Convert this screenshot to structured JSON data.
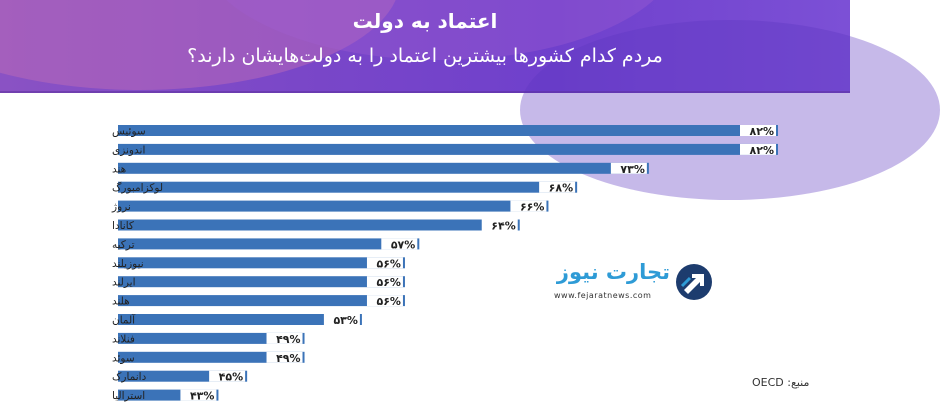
{
  "header": {
    "title": "اعتماد به دولت",
    "subtitle": "مردم کدام کشورها بیشترین اعتماد را به دولت‌هایشان دارند؟"
  },
  "colors": {
    "bar": "#3b73b8",
    "header": "#7a47c8",
    "accent": "#2e9bd6"
  },
  "logo": {
    "brand": "تجارت نیوز",
    "url": "www.fejaratnews.com",
    "icon": "upward-arrow-circle-icon"
  },
  "source": "منبع: OECD",
  "chart_data": {
    "type": "bar",
    "orientation": "horizontal",
    "categories": [
      "سوئیس",
      "اندونزی",
      "هند",
      "لوکزامبورگ",
      "نروژ",
      "کانادا",
      "ترکیه",
      "نیوزیلند",
      "ایرلند",
      "هلند",
      "آلمان",
      "فنلاند",
      "سوئد",
      "دانمارک",
      "استرالیا"
    ],
    "values": [
      82,
      82,
      73,
      68,
      66,
      64,
      57,
      56,
      56,
      56,
      53,
      49,
      49,
      45,
      43
    ],
    "value_labels": [
      "۸۲%",
      "۸۲%",
      "۷۳%",
      "۶۸%",
      "۶۶%",
      "۶۴%",
      "۵۷%",
      "۵۶%",
      "۵۶%",
      "۵۶%",
      "۵۳%",
      "۴۹%",
      "۴۹%",
      "۴۵%",
      "۴۳%"
    ],
    "title": "اعتماد به دولت",
    "xlabel": "",
    "ylabel": "",
    "xlim": [
      36,
      82
    ],
    "grid": false,
    "legend": "none"
  }
}
